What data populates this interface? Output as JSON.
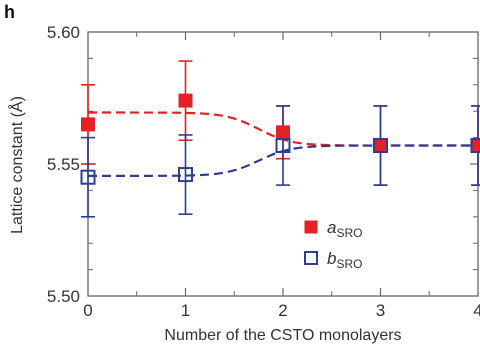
{
  "panel_label": "h",
  "chart_data": {
    "type": "scatter",
    "title": "",
    "xlabel": "Number of the CSTO monolayers",
    "ylabel": "Lattice constant (Å)",
    "xlim": [
      0,
      4
    ],
    "ylim": [
      5.5,
      5.6
    ],
    "x_ticks": [
      "0",
      "1",
      "2",
      "3",
      "4"
    ],
    "y_ticks": [
      "5.60",
      "5.55",
      "5.50"
    ],
    "grid": false,
    "legend_position": "lower-right",
    "series": [
      {
        "name": "a",
        "name_subscript": "SRO",
        "marker": "filled-square",
        "color": "#e32228",
        "x": [
          0,
          1,
          2,
          3,
          4
        ],
        "y": [
          5.565,
          5.574,
          5.562,
          5.557,
          5.557
        ],
        "error": [
          0.015,
          0.015,
          0.01,
          0.015,
          0.015
        ],
        "fit_line": "dashed"
      },
      {
        "name": "b",
        "name_subscript": "SRO",
        "marker": "open-square",
        "color": "#2e3d94",
        "x": [
          0,
          1,
          2,
          3,
          4
        ],
        "y": [
          5.545,
          5.546,
          5.557,
          5.557,
          5.557
        ],
        "error": [
          0.015,
          0.015,
          0.015,
          0.015,
          0.015
        ],
        "fit_line": "dashed"
      }
    ]
  }
}
